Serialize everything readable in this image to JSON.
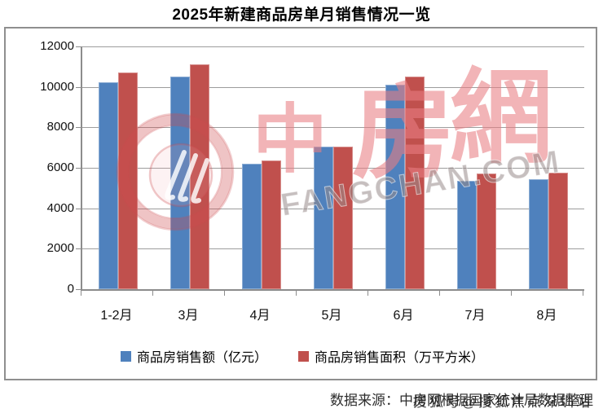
{
  "title": "2025年新建商品房单月销售情况一览",
  "chart_data": {
    "type": "bar",
    "title": "2025年新建商品房单月销售情况一览",
    "categories": [
      "1-2月",
      "3月",
      "4月",
      "5月",
      "6月",
      "7月",
      "8月"
    ],
    "series": [
      {
        "name": "商品房销售额（亿元）",
        "color": "#4F81BD",
        "values": [
          10230,
          10510,
          6200,
          7050,
          10110,
          5350,
          5440
        ]
      },
      {
        "name": "商品房销售面积（万平方米）",
        "color": "#C0504D",
        "values": [
          10710,
          11110,
          6380,
          7050,
          10530,
          5720,
          5750
        ]
      }
    ],
    "xlabel": "",
    "ylabel": "",
    "ylim": [
      0,
      12000
    ],
    "ytick_interval": 2000,
    "ytick_labels": [
      "12000",
      "10000",
      "8000",
      "6000",
      "4000",
      "2000",
      "0"
    ],
    "grid": "horizontal",
    "legend_position": "bottom"
  },
  "watermark": {
    "logo_icon": "fangchan-circle-logo",
    "text_cn": [
      "中",
      "房",
      "網"
    ],
    "text_en": "FANGCHAN.COM"
  },
  "footer": {
    "source_text": "数据来源：中房网根据国家统计局数据整理",
    "overlay_watermark_text": "搜狐号@搜狐焦点深圳站"
  },
  "colors": {
    "series_blue": "#4F81BD",
    "series_red": "#C0504D",
    "gridline": "#9d9d9d",
    "axis": "#8c8c8c",
    "frame_border": "#8f8f8f",
    "watermark_pink": "rgba(233,126,131,0.58)",
    "watermark_gray": "rgba(152,139,139,0.55)"
  }
}
